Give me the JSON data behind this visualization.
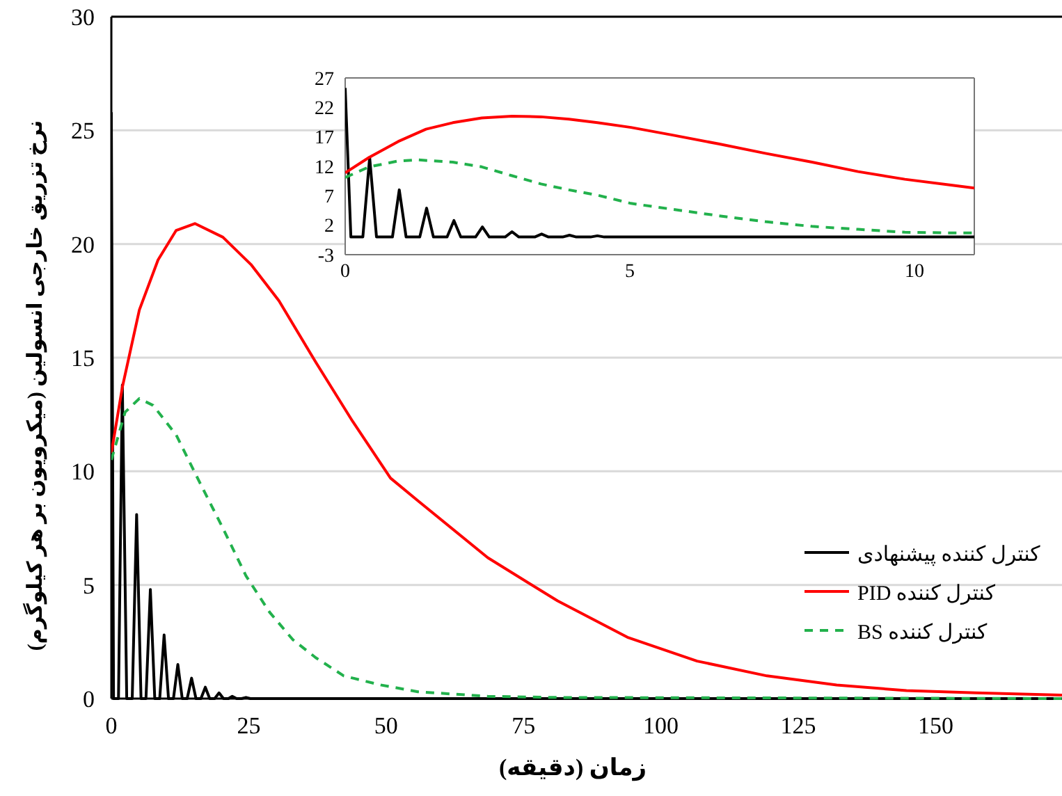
{
  "chart_data": [
    {
      "type": "line",
      "xlabel": "زمان (دقیقه)",
      "ylabel": "نرخ تزریق خارجی انسولین (میکرویون بر هر کیلوگرم)",
      "xlim": [
        0,
        173
      ],
      "ylim": [
        0,
        30
      ],
      "xticks": [
        0,
        25,
        50,
        75,
        100,
        125,
        150
      ],
      "yticks": [
        0,
        5,
        10,
        15,
        20,
        25,
        30
      ],
      "grid": "y",
      "legend": "bottom right",
      "series": [
        {
          "name": "کنترل کننده پیشنهادی",
          "color": "#000000",
          "line_style": "solid",
          "x": [
            0,
            0.4,
            1.3,
            2.0,
            2.8,
            3.8,
            4.6,
            5.4,
            6.3,
            7.1,
            7.9,
            8.8,
            9.6,
            10.4,
            11.3,
            12.1,
            12.9,
            13.8,
            14.6,
            15.4,
            16.3,
            17.1,
            17.9,
            18.8,
            19.6,
            20.4,
            21.3,
            22.0,
            22.8,
            23.7,
            24.5,
            25.3,
            173
          ],
          "values": [
            25.8,
            0,
            0,
            13.8,
            0,
            0,
            8.1,
            0,
            0,
            4.8,
            0,
            0,
            2.8,
            0,
            0,
            1.5,
            0,
            0,
            0.9,
            0,
            0,
            0.5,
            0,
            0,
            0.25,
            0,
            0,
            0.1,
            0,
            0,
            0.05,
            0,
            0
          ]
        },
        {
          "name": "کنترل کننده PID",
          "color": "#ff0000",
          "line_style": "solid",
          "x": [
            0,
            2.0,
            5.1,
            8.5,
            11.8,
            15.2,
            20.3,
            25.4,
            30.5,
            37.2,
            43.9,
            50.8,
            55.8,
            68.5,
            81.2,
            93.9,
            106.6,
            119.3,
            132,
            144.7,
            157.4,
            173
          ],
          "values": [
            10.8,
            13.7,
            17.1,
            19.3,
            20.6,
            20.9,
            20.3,
            19.1,
            17.5,
            14.8,
            12.2,
            9.7,
            8.7,
            6.2,
            4.3,
            2.7,
            1.65,
            1.0,
            0.6,
            0.35,
            0.25,
            0.15
          ]
        },
        {
          "name": "کنترل کننده BS",
          "color": "#22b14c",
          "line_style": "dashed",
          "x": [
            0,
            2.5,
            5.1,
            7.6,
            11.8,
            16.1,
            20.3,
            24.5,
            28.8,
            33,
            37.2,
            42.3,
            49,
            55.8,
            68.5,
            81,
            173
          ],
          "values": [
            10.5,
            12.6,
            13.2,
            12.9,
            11.6,
            9.5,
            7.5,
            5.4,
            3.8,
            2.6,
            1.8,
            1.0,
            0.6,
            0.3,
            0.1,
            0.05,
            0
          ]
        }
      ]
    },
    {
      "type": "line",
      "xlim": [
        0,
        11.05
      ],
      "ylim": [
        -3,
        27
      ],
      "xticks": [
        0,
        5,
        10
      ],
      "yticks": [
        -3,
        2,
        7,
        12,
        17,
        22,
        27
      ],
      "series": [
        {
          "color": "#000000",
          "line_style": "solid",
          "x": [
            0,
            0.1,
            0.31,
            0.43,
            0.55,
            0.83,
            0.95,
            1.07,
            1.31,
            1.43,
            1.55,
            1.79,
            1.91,
            2.03,
            2.29,
            2.41,
            2.53,
            2.81,
            2.93,
            3.05,
            3.33,
            3.45,
            3.57,
            3.82,
            3.94,
            4.06,
            4.31,
            4.43,
            4.55,
            11.05
          ],
          "values": [
            25.3,
            0,
            0,
            13.5,
            0,
            0,
            8.0,
            0,
            0,
            4.9,
            0,
            0,
            2.8,
            0,
            0,
            1.7,
            0,
            0,
            0.9,
            0,
            0,
            0.5,
            0,
            0,
            0.3,
            0,
            0,
            0.2,
            0,
            0
          ]
        },
        {
          "color": "#ff0000",
          "line_style": "solid",
          "x": [
            0,
            0.42,
            0.93,
            1.42,
            1.89,
            2.4,
            2.93,
            3.44,
            3.93,
            4.43,
            5.02,
            5.75,
            6.56,
            7.38,
            8.2,
            9.01,
            9.83,
            10.64,
            11.05
          ],
          "values": [
            10.9,
            13.5,
            16.2,
            18.3,
            19.4,
            20.2,
            20.5,
            20.4,
            20.0,
            19.4,
            18.6,
            17.3,
            15.8,
            14.2,
            12.7,
            11.1,
            9.8,
            8.8,
            8.3
          ]
        },
        {
          "color": "#22b14c",
          "line_style": "dashed",
          "x": [
            0,
            0.42,
            0.93,
            1.26,
            1.89,
            2.4,
            2.93,
            3.44,
            3.93,
            4.43,
            5.02,
            5.75,
            6.56,
            7.38,
            8.2,
            9.01,
            9.83,
            10.64,
            11.05
          ],
          "values": [
            10.1,
            11.9,
            12.9,
            13.1,
            12.7,
            11.9,
            10.4,
            9.0,
            8.0,
            7.1,
            5.7,
            4.7,
            3.6,
            2.6,
            1.8,
            1.3,
            0.8,
            0.7,
            0.7
          ]
        }
      ]
    }
  ]
}
